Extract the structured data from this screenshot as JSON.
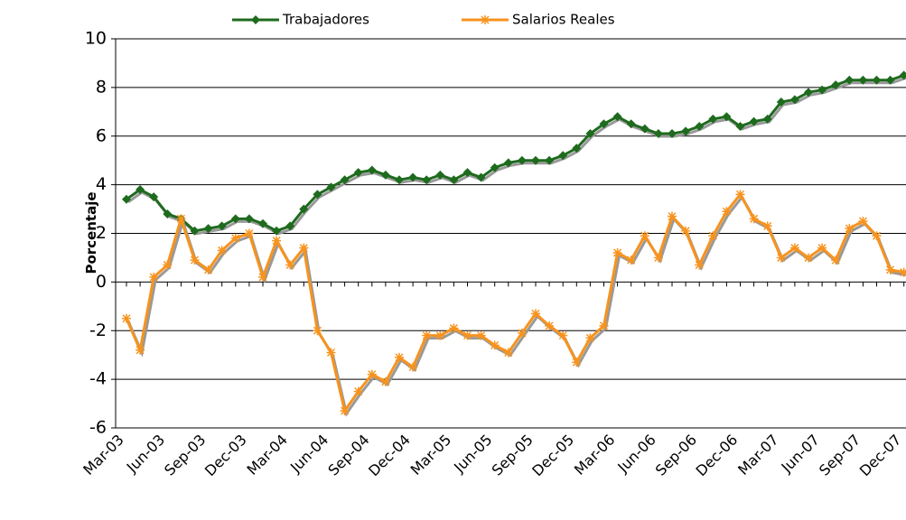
{
  "chart_data": {
    "type": "line",
    "y_label": "Porcentaje",
    "categories": [
      "Mar-03",
      null,
      null,
      "Jun-03",
      null,
      null,
      "Sep-03",
      null,
      null,
      "Dec-03",
      null,
      null,
      "Mar-04",
      null,
      null,
      "Jun-04",
      null,
      null,
      "Sep-04",
      null,
      null,
      "Dec-04",
      null,
      null,
      "Mar-05",
      null,
      null,
      "Jun-05",
      null,
      null,
      "Sep-05",
      null,
      null,
      "Dec-05",
      null,
      null,
      "Mar-06",
      null,
      null,
      "Jun-06",
      null,
      null,
      "Sep-06",
      null,
      null,
      "Dec-06",
      null,
      null,
      "Mar-07",
      null,
      null,
      "Jun-07",
      null,
      null,
      "Sep-07",
      null,
      null,
      "Dec-07"
    ],
    "series": [
      {
        "name": "Trabajadores",
        "color": "#1e6b1e",
        "marker": "diamond",
        "values": [
          3.4,
          3.8,
          3.5,
          2.8,
          2.6,
          2.1,
          2.2,
          2.3,
          2.6,
          2.6,
          2.4,
          2.1,
          2.3,
          3.0,
          3.6,
          3.9,
          4.2,
          4.5,
          4.6,
          4.4,
          4.2,
          4.3,
          4.2,
          4.4,
          4.2,
          4.5,
          4.3,
          4.7,
          4.9,
          5.0,
          5.0,
          5.0,
          5.2,
          5.5,
          6.1,
          6.5,
          6.8,
          6.5,
          6.3,
          6.1,
          6.1,
          6.2,
          6.4,
          6.7,
          6.8,
          6.4,
          6.6,
          6.7,
          7.4,
          7.5,
          7.8,
          7.9,
          8.1,
          8.3,
          8.3,
          8.3,
          8.3,
          8.5
        ]
      },
      {
        "name": "Salarios Reales",
        "color": "#f7931e",
        "marker": "asterisk",
        "values": [
          -1.5,
          -2.8,
          0.2,
          0.7,
          2.6,
          0.9,
          0.5,
          1.3,
          1.8,
          2.0,
          0.2,
          1.7,
          0.7,
          1.4,
          -2.0,
          -2.9,
          -5.3,
          -4.5,
          -3.8,
          -4.1,
          -3.1,
          -3.5,
          -2.2,
          -2.2,
          -1.9,
          -2.2,
          -2.2,
          -2.6,
          -2.9,
          -2.1,
          -1.3,
          -1.8,
          -2.2,
          -3.3,
          -2.3,
          -1.8,
          1.2,
          0.9,
          1.9,
          1.0,
          2.7,
          2.1,
          0.7,
          1.9,
          2.9,
          3.6,
          2.6,
          2.3,
          1.0,
          1.4,
          1.0,
          1.4,
          0.9,
          2.2,
          2.5,
          1.9,
          0.5,
          0.4
        ]
      }
    ],
    "ylim": [
      -6,
      10
    ],
    "yticks": [
      -6,
      -4,
      -2,
      0,
      2,
      4,
      6,
      8,
      10
    ],
    "grid": true,
    "legend": "top"
  }
}
